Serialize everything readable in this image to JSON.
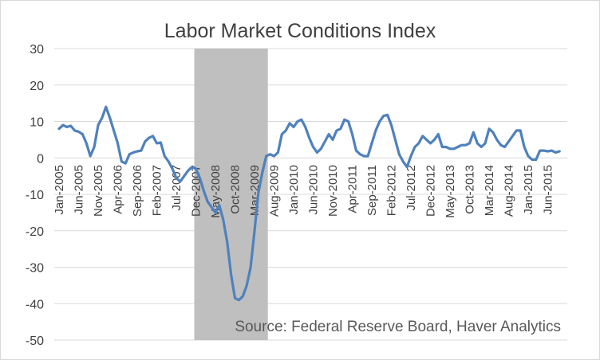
{
  "chart_data": {
    "type": "line",
    "title": "Labor Market Conditions Index",
    "xlabel": "",
    "ylabel": "",
    "ylim": [
      -50,
      30
    ],
    "yticks": [
      30,
      20,
      10,
      0,
      -10,
      -20,
      -30,
      -40,
      -50
    ],
    "grid": true,
    "legend": "none",
    "x_tick_labels": [
      "Jan-2005",
      "Jun-2005",
      "Nov-2005",
      "Apr-2006",
      "Sep-2006",
      "Feb-2007",
      "Jul-2007",
      "Dec-2007",
      "May-2008",
      "Oct-2008",
      "Mar-2009",
      "Aug-2009",
      "Jan-2010",
      "Jun-2010",
      "Nov-2010",
      "Apr-2011",
      "Sep-2011",
      "Feb-2012",
      "Jul-2012",
      "Dec-2012",
      "May-2013",
      "Oct-2013",
      "Mar-2014",
      "Aug-2014",
      "Jan-2015",
      "Jun-2015"
    ],
    "recession_shading": {
      "start": "Dec-2007",
      "end": "Jun-2009",
      "color": "#bfbfbf"
    },
    "series": [
      {
        "color": "#4f81bd",
        "start": "Jan-2005",
        "frequency": "monthly",
        "values": [
          8.0,
          9.0,
          8.5,
          8.8,
          7.5,
          7.2,
          6.5,
          4.0,
          0.5,
          3.0,
          9.0,
          11.0,
          14.0,
          11.0,
          7.5,
          4.0,
          -1.0,
          -1.5,
          1.0,
          1.5,
          1.8,
          2.0,
          4.5,
          5.5,
          6.0,
          4.0,
          4.2,
          0.5,
          -1.0,
          -3.0,
          -5.5,
          -6.5,
          -5.0,
          -3.5,
          -2.5,
          -3.0,
          -5.5,
          -9.0,
          -12.0,
          -13.5,
          -15.0,
          -13.0,
          -17.0,
          -23.0,
          -32.0,
          -38.5,
          -39.0,
          -38.0,
          -35.0,
          -30.0,
          -20.0,
          -9.5,
          -4.0,
          0.5,
          1.0,
          0.5,
          1.5,
          6.5,
          7.5,
          9.5,
          8.5,
          10.0,
          10.5,
          8.5,
          5.5,
          3.0,
          1.5,
          2.5,
          4.5,
          6.5,
          5.0,
          7.5,
          8.0,
          10.5,
          10.0,
          6.5,
          2.0,
          1.0,
          0.5,
          0.5,
          4.0,
          7.5,
          10.0,
          11.5,
          11.8,
          9.0,
          5.0,
          1.0,
          -1.0,
          -2.5,
          0.5,
          3.0,
          4.0,
          6.0,
          5.0,
          4.0,
          5.0,
          6.5,
          3.0,
          3.0,
          2.5,
          2.5,
          3.0,
          3.5,
          3.5,
          4.0,
          7.0,
          4.0,
          3.0,
          4.0,
          8.0,
          7.0,
          5.0,
          3.5,
          3.0,
          4.5,
          6.0,
          7.5,
          7.5,
          3.0,
          0.5,
          -0.5,
          -0.5,
          2.0,
          2.0,
          1.8,
          2.0,
          1.5,
          1.8
        ]
      }
    ],
    "source_note": "Source: Federal Reserve Board, Haver Analytics"
  }
}
